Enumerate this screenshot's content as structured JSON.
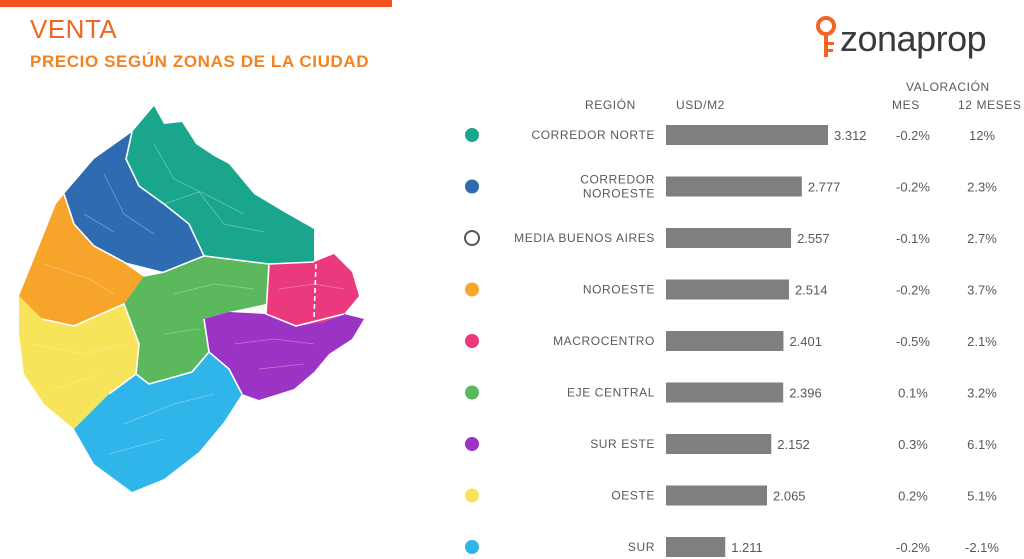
{
  "header": {
    "title": "VENTA",
    "subtitle": "PRECIO SEGÚN ZONAS DE LA CIUDAD",
    "logo_text": "zonaprop"
  },
  "table_headers": {
    "region": "REGIÓN",
    "usd": "USD/M2",
    "valoracion": "VALORACIÓN",
    "mes": "MES",
    "doce_meses": "12 MESES"
  },
  "colors": {
    "accent": "#f26522",
    "bar": "#7f7f7f",
    "corredor_norte": "#1aa58d",
    "corredor_noroeste": "#2e6bb0",
    "media": "#ffffff",
    "noroeste": "#f7a42a",
    "macrocentro": "#ea3a7d",
    "eje_central": "#5cb85c",
    "sur_este": "#9b33c4",
    "oeste": "#f7e45a",
    "sur": "#2fb5ea"
  },
  "chart_data": {
    "type": "bar",
    "orientation": "horizontal",
    "xlabel": "USD/M2",
    "categories": [
      [
        "CORREDOR NORTE"
      ],
      [
        "CORREDOR",
        "NOROESTE"
      ],
      [
        "MEDIA BUENOS AIRES"
      ],
      [
        "NOROESTE"
      ],
      [
        "MACROCENTRO"
      ],
      [
        "EJE CENTRAL"
      ],
      [
        "SUR ESTE"
      ],
      [
        "OESTE"
      ],
      [
        "SUR"
      ]
    ],
    "values": [
      3312,
      2777,
      2557,
      2514,
      2401,
      2396,
      2152,
      2065,
      1211
    ],
    "value_labels": [
      "3.312",
      "2.777",
      "2.557",
      "2.514",
      "2.401",
      "2.396",
      "2.152",
      "2.065",
      "1.211"
    ],
    "dot_colors": [
      "#1aa58d",
      "#2e6bb0",
      "#ffffff",
      "#f7a42a",
      "#ea3a7d",
      "#5cb85c",
      "#9b33c4",
      "#f7e45a",
      "#2fb5ea"
    ],
    "mes": [
      "-0.2%",
      "-0.2%",
      "-0.1%",
      "-0.2%",
      "-0.5%",
      "0.1%",
      "0.3%",
      "0.2%",
      "-0.2%"
    ],
    "doce_meses": [
      "12%",
      "2.3%",
      "2.7%",
      "3.7%",
      "2.1%",
      "3.2%",
      "6.1%",
      "5.1%",
      "-2.1%"
    ]
  }
}
